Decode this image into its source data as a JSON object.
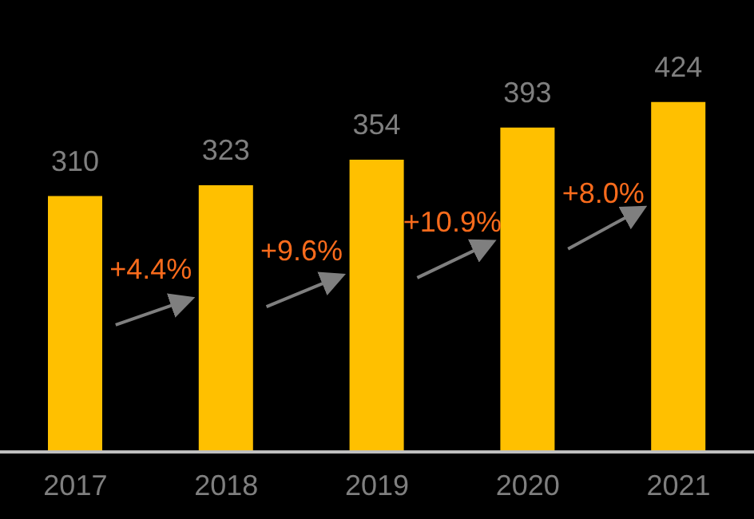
{
  "chart_data": {
    "type": "bar",
    "categories": [
      "2017",
      "2018",
      "2019",
      "2020",
      "2021"
    ],
    "values": [
      310,
      323,
      354,
      393,
      424
    ],
    "color": "#ffc000",
    "data_labels": true,
    "annotations": [
      "+4.4%",
      "+9.6%",
      "+10.9%",
      "+8.0%"
    ]
  }
}
